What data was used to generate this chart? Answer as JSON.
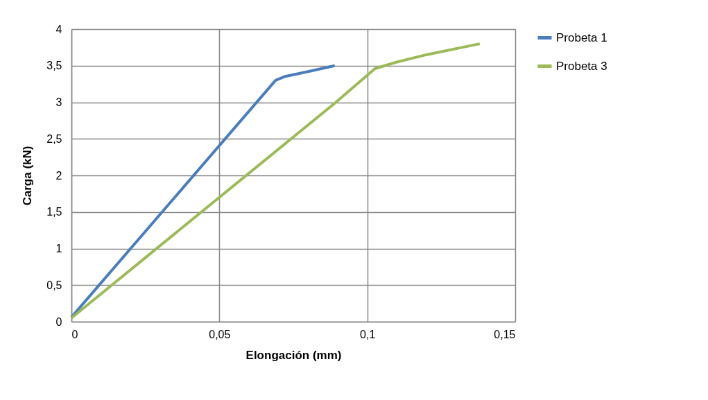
{
  "chart_data": {
    "type": "line",
    "xlabel": "Elongación (mm)",
    "ylabel": "Carga (kN)",
    "series": [
      {
        "name": "Probeta 1",
        "color": "#4a7ebb",
        "x": [
          0,
          0.069,
          0.072,
          0.08,
          0.089
        ],
        "values": [
          0.06,
          3.3,
          3.35,
          3.42,
          3.5
        ]
      },
      {
        "name": "Probeta 3",
        "color": "#9bbb59",
        "x": [
          0,
          0.0894,
          0.1026,
          0.11,
          0.12,
          0.138
        ],
        "values": [
          0.05,
          3,
          3.46,
          3.55,
          3.65,
          3.8
        ]
      }
    ],
    "xlim": [
      0,
      0.15
    ],
    "xticks": [
      0,
      {
        "value": 0.05,
        "label": "0,05"
      },
      {
        "value": 0.1,
        "label": "0,1"
      },
      {
        "value": 0.15,
        "label": "0,15"
      }
    ],
    "ylim": [
      0,
      4
    ],
    "yticks": [
      0,
      {
        "value": 0.5,
        "label": "0,5"
      },
      1,
      {
        "value": 1.5,
        "label": "1,5"
      },
      2,
      {
        "value": 2.5,
        "label": "2,5"
      },
      3,
      {
        "value": 3.5,
        "label": "3,5"
      },
      4
    ],
    "grid": true,
    "legend": "right",
    "marker": "none",
    "line_style": "solid"
  }
}
